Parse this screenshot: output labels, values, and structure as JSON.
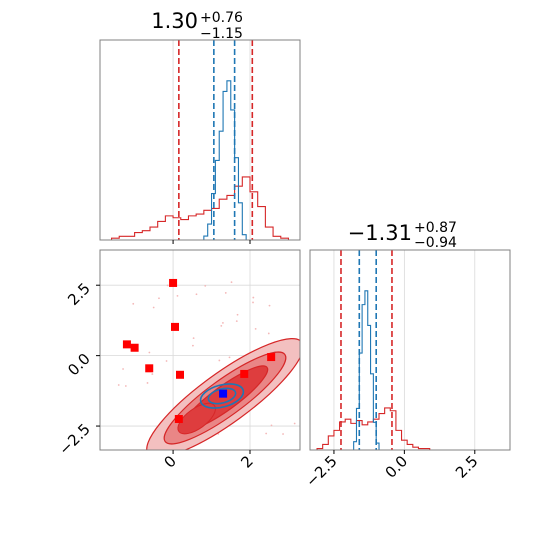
{
  "chart_data": [
    {
      "type": "histogram",
      "panel": "top-left marginal",
      "title": {
        "value": "1.30",
        "upper": "+0.76",
        "lower": "−1.15"
      },
      "xlim": [
        -1.9,
        3.3
      ],
      "x_ticks": [],
      "grid": true,
      "colors": {
        "wide": "#d62728",
        "narrow": "#1f77b4"
      },
      "vlines": {
        "red_dashed": [
          0.15,
          2.06
        ],
        "blue_dashed": [
          1.06,
          1.6
        ]
      },
      "series": [
        {
          "color": "#d62728",
          "bin_edges": [
            -1.6,
            -1.4,
            -1.2,
            -1.0,
            -0.8,
            -0.6,
            -0.4,
            -0.2,
            0.0,
            0.2,
            0.4,
            0.6,
            0.8,
            1.0,
            1.2,
            1.4,
            1.6,
            1.8,
            2.0,
            2.2,
            2.4,
            2.6,
            2.8,
            3.0
          ],
          "counts": [
            1,
            2,
            2,
            4,
            5,
            7,
            10,
            13,
            12,
            11,
            13,
            14,
            16,
            17,
            22,
            24,
            29,
            34,
            26,
            18,
            7,
            2,
            1
          ]
        },
        {
          "color": "#1f77b4",
          "bin_edges": [
            0.8,
            0.9,
            1.0,
            1.1,
            1.2,
            1.3,
            1.4,
            1.5,
            1.6,
            1.7,
            1.8,
            1.9
          ],
          "counts": [
            3,
            12,
            35,
            60,
            82,
            112,
            120,
            98,
            62,
            28,
            4
          ]
        }
      ]
    },
    {
      "type": "contour",
      "panel": "bottom-left joint",
      "xlim": [
        -1.9,
        3.3
      ],
      "ylim": [
        -3.35,
        3.75
      ],
      "x_ticks": [
        "0",
        "2"
      ],
      "y_ticks": [
        "2.5",
        "0.0",
        "−2.5"
      ],
      "grid": true,
      "colors": {
        "fill_levels": [
          "#f3c0c0",
          "#e98686",
          "#de3d3e"
        ],
        "red_outline": "#d62728",
        "blue_outline": "#1f77b4",
        "markers": "#ff0000",
        "truth": "#0000ff"
      },
      "markers_red_square": [
        {
          "x": 0.0,
          "y": 2.58
        },
        {
          "x": 0.05,
          "y": 1.02
        },
        {
          "x": -1.2,
          "y": 0.4
        },
        {
          "x": -1.0,
          "y": 0.28
        },
        {
          "x": -0.62,
          "y": -0.45
        },
        {
          "x": 0.18,
          "y": -0.68
        },
        {
          "x": 1.85,
          "y": -0.65
        },
        {
          "x": 2.55,
          "y": -0.05
        },
        {
          "x": 0.15,
          "y": -2.25
        }
      ],
      "marker_blue_square": {
        "x": 1.3,
        "y": -1.35
      }
    },
    {
      "type": "histogram",
      "panel": "bottom-right marginal",
      "title": {
        "value": "−1.31",
        "upper": "+0.87",
        "lower": "−0.94"
      },
      "xlim": [
        -3.35,
        3.75
      ],
      "x_ticks": [
        "−2.5",
        "0.0",
        "2.5"
      ],
      "grid": true,
      "colors": {
        "wide": "#d62728",
        "narrow": "#1f77b4"
      },
      "vlines": {
        "red_dashed": [
          -2.25,
          -0.44
        ],
        "blue_dashed": [
          -1.6,
          -1.0
        ]
      },
      "series": [
        {
          "color": "#d62728",
          "bin_edges": [
            -3.1,
            -2.9,
            -2.7,
            -2.5,
            -2.3,
            -2.1,
            -1.9,
            -1.7,
            -1.5,
            -1.3,
            -1.1,
            -0.9,
            -0.7,
            -0.5,
            -0.3,
            -0.1,
            0.1,
            0.3,
            0.5,
            0.7,
            0.9
          ],
          "counts": [
            1,
            4,
            10,
            14,
            20,
            22,
            19,
            21,
            18,
            20,
            22,
            26,
            30,
            28,
            14,
            7,
            4,
            2,
            1,
            1
          ]
        },
        {
          "color": "#1f77b4",
          "bin_edges": [
            -1.8,
            -1.7,
            -1.6,
            -1.5,
            -1.4,
            -1.3,
            -1.2,
            -1.1,
            -1.0,
            -0.9
          ],
          "counts": [
            6,
            30,
            70,
            105,
            115,
            90,
            55,
            20,
            5
          ]
        }
      ]
    }
  ]
}
